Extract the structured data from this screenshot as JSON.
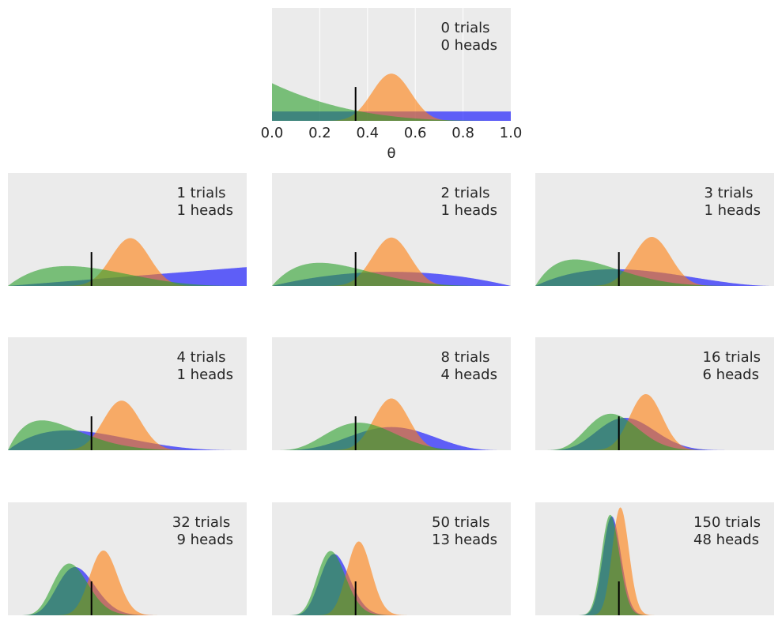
{
  "chart_data": {
    "type": "area",
    "xlabel": "θ",
    "xlim": [
      0,
      1
    ],
    "ylim": [
      0,
      12
    ],
    "grid": true,
    "x_ticks": [
      "0.0",
      "0.2",
      "0.4",
      "0.6",
      "0.8",
      "1.0"
    ],
    "true_theta": 0.35,
    "vline_height_fraction": 0.3,
    "priors": [
      {
        "alpha": 1,
        "beta": 1,
        "color": "#0000ff"
      },
      {
        "alpha": 20,
        "beta": 20,
        "color": "#ff7f0e"
      },
      {
        "alpha": 1,
        "beta": 4,
        "color": "#2ca02c"
      }
    ],
    "panels": [
      {
        "trials": 0,
        "heads": 0,
        "label1": "0 trials",
        "label2": "0 heads"
      },
      {
        "trials": 1,
        "heads": 1,
        "label1": "1 trials",
        "label2": "1 heads"
      },
      {
        "trials": 2,
        "heads": 1,
        "label1": "2 trials",
        "label2": "1 heads"
      },
      {
        "trials": 3,
        "heads": 1,
        "label1": "3 trials",
        "label2": "1 heads"
      },
      {
        "trials": 4,
        "heads": 1,
        "label1": "4 trials",
        "label2": "1 heads"
      },
      {
        "trials": 8,
        "heads": 4,
        "label1": "8 trials",
        "label2": "4 heads"
      },
      {
        "trials": 16,
        "heads": 6,
        "label1": "16 trials",
        "label2": "6 heads"
      },
      {
        "trials": 32,
        "heads": 9,
        "label1": "32 trials",
        "label2": " 9 heads"
      },
      {
        "trials": 50,
        "heads": 13,
        "label1": "50 trials",
        "label2": "13 heads"
      },
      {
        "trials": 150,
        "heads": 48,
        "label1": "150 trials",
        "label2": "48 heads"
      }
    ]
  }
}
